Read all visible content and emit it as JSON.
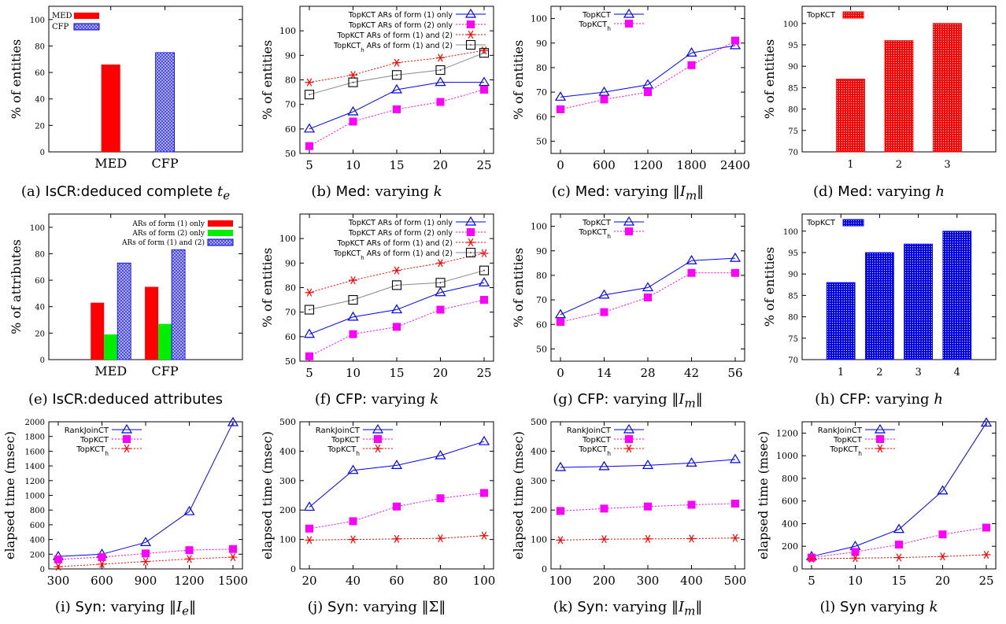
{
  "colors": {
    "red": "#ff0000",
    "magenta": "#ff00ff",
    "blue": "#0000ff",
    "green": "#00ee00",
    "black": "#000000",
    "gray": "#888888",
    "lightblue": "#8080ff"
  },
  "captions": [
    {
      "id": "a",
      "label": "(a)",
      "text": "IsCR:deduced complete",
      "math": "t",
      "sub": "e",
      "suffix": ""
    },
    {
      "id": "b",
      "label": "(b)",
      "text": "Med:",
      "rest": "varying",
      "math": "k",
      "sub": "",
      "suffix": ""
    },
    {
      "id": "c",
      "label": "(c)",
      "text": "Med:",
      "rest": "varying ‖",
      "math": "I",
      "sub": "m",
      "suffix": "‖"
    },
    {
      "id": "d",
      "label": "(d)",
      "text": "Med:",
      "rest": "varying",
      "math": "h",
      "sub": "",
      "suffix": ""
    },
    {
      "id": "e",
      "label": "(e)",
      "text": "IsCR:deduced attributes",
      "math": "",
      "sub": "",
      "suffix": ""
    },
    {
      "id": "f",
      "label": "(f)",
      "text": "CFP:",
      "rest": "varying",
      "math": "k",
      "sub": "",
      "suffix": ""
    },
    {
      "id": "g",
      "label": "(g)",
      "text": "CFP:",
      "rest": "varying ‖",
      "math": "I",
      "sub": "m",
      "suffix": "‖"
    },
    {
      "id": "h",
      "label": "(h)",
      "text": "CFP:",
      "rest": "varying",
      "math": "h",
      "sub": "",
      "suffix": ""
    },
    {
      "id": "i",
      "label": "(i)",
      "text": "Syn:",
      "rest": "varying ‖",
      "math": "I",
      "sub": "e",
      "suffix": "‖"
    },
    {
      "id": "j",
      "label": "(j)",
      "text": "Syn:",
      "rest": "varying ‖Σ‖",
      "math": "",
      "sub": "",
      "suffix": ""
    },
    {
      "id": "k",
      "label": "(k)",
      "text": "Syn:",
      "rest": "varying ‖",
      "math": "I",
      "sub": "m",
      "suffix": "‖"
    },
    {
      "id": "l",
      "label": "(l)",
      "text": "Syn",
      "rest": "varying",
      "math": "k",
      "sub": "",
      "suffix": ""
    }
  ],
  "chart_data": [
    {
      "id": "a",
      "type": "bar",
      "ylabel": "% of entities",
      "ylim": [
        0,
        110
      ],
      "yticks": [
        0,
        20,
        40,
        60,
        80,
        100
      ],
      "categories": [
        "MED",
        "CFP"
      ],
      "series": [
        {
          "name": "MED",
          "style": "solid-red",
          "values": [
            66,
            null
          ]
        },
        {
          "name": "CFP",
          "style": "hatch-blue",
          "values": [
            null,
            75
          ]
        }
      ],
      "legend": "top-left"
    },
    {
      "id": "b",
      "type": "line",
      "ylabel": "% of entities",
      "ylim": [
        50,
        110
      ],
      "yticks": [
        50,
        60,
        70,
        80,
        90,
        100
      ],
      "x": [
        5,
        10,
        15,
        20,
        25
      ],
      "series": [
        {
          "name": "TopKCT ARs of form (1) only",
          "marker": "triangle",
          "color": "blue",
          "dash": false,
          "values": [
            60,
            67,
            76,
            79,
            79
          ]
        },
        {
          "name": "TopKCT ARs of form (2) only",
          "marker": "square-filled",
          "color": "magenta",
          "dash": true,
          "values": [
            53,
            63,
            68,
            71,
            76
          ]
        },
        {
          "name": "TopKCT ARs of form (1) and (2)",
          "marker": "star",
          "color": "red",
          "dash": true,
          "values": [
            79,
            82,
            87,
            89,
            92
          ]
        },
        {
          "name": "TopKCT",
          "name_sub": "h",
          "name_rest": " ARs of form (1) and (2)",
          "marker": "square-open",
          "color": "black",
          "dash": false,
          "line": "gray",
          "values": [
            74,
            79,
            82,
            84,
            91
          ]
        }
      ],
      "legend": "top"
    },
    {
      "id": "c",
      "type": "line",
      "ylabel": "% of entities",
      "ylim": [
        45,
        105
      ],
      "yticks": [
        50,
        60,
        70,
        80,
        90,
        100
      ],
      "x": [
        0,
        600,
        1200,
        1800,
        2400
      ],
      "series": [
        {
          "name": "TopKCT",
          "marker": "triangle",
          "color": "blue",
          "dash": false,
          "values": [
            68,
            70,
            73,
            86,
            89
          ]
        },
        {
          "name": "TopKCT",
          "name_sub": "h",
          "marker": "square-filled",
          "color": "magenta",
          "dash": true,
          "values": [
            63,
            67,
            70,
            81,
            91
          ]
        }
      ],
      "legend": "top-left"
    },
    {
      "id": "d",
      "type": "bar",
      "ylabel": "% of entities",
      "ylim": [
        70,
        104
      ],
      "yticks": [
        70,
        75,
        80,
        85,
        90,
        95,
        100
      ],
      "categories": [
        "1",
        "2",
        "3"
      ],
      "series": [
        {
          "name": "TopKCT",
          "style": "dot-red",
          "values": [
            87,
            96,
            100
          ]
        }
      ],
      "legend": "top-left"
    },
    {
      "id": "e",
      "type": "bar",
      "ylabel": "% of attributes",
      "ylim": [
        0,
        110
      ],
      "yticks": [
        0,
        20,
        40,
        60,
        80,
        100
      ],
      "categories": [
        "MED",
        "CFP"
      ],
      "series": [
        {
          "name": "ARs of form (1) only",
          "style": "solid-red",
          "values": [
            43,
            55
          ]
        },
        {
          "name": "ARs of form (2) only",
          "style": "solid-green",
          "values": [
            19,
            27
          ]
        },
        {
          "name": "ARs of form (1) and (2)",
          "style": "hatch-blue",
          "values": [
            73,
            83
          ]
        }
      ],
      "legend": "top-right"
    },
    {
      "id": "f",
      "type": "line",
      "ylabel": "% of entities",
      "ylim": [
        50,
        110
      ],
      "yticks": [
        50,
        60,
        70,
        80,
        90,
        100
      ],
      "x": [
        5,
        10,
        15,
        20,
        25
      ],
      "series": [
        {
          "name": "TopKCT ARs of form (1) only",
          "marker": "triangle",
          "color": "blue",
          "dash": false,
          "values": [
            61,
            68,
            71,
            78,
            82
          ]
        },
        {
          "name": "TopKCT ARs of form (2) only",
          "marker": "square-filled",
          "color": "magenta",
          "dash": true,
          "values": [
            52,
            61,
            64,
            71,
            75
          ]
        },
        {
          "name": "TopKCT ARs of form (1) and (2)",
          "marker": "star",
          "color": "red",
          "dash": true,
          "values": [
            78,
            83,
            87,
            90,
            94
          ]
        },
        {
          "name": "TopKCT",
          "name_sub": "h",
          "name_rest": " ARs of form (1) and (2)",
          "marker": "square-open",
          "color": "black",
          "dash": false,
          "line": "gray",
          "values": [
            71,
            75,
            81,
            82,
            87
          ]
        }
      ],
      "legend": "top"
    },
    {
      "id": "g",
      "type": "line",
      "ylabel": "% of entities",
      "ylim": [
        45,
        105
      ],
      "yticks": [
        50,
        60,
        70,
        80,
        90,
        100
      ],
      "x": [
        0,
        14,
        28,
        42,
        56
      ],
      "series": [
        {
          "name": "TopKCT",
          "marker": "triangle",
          "color": "blue",
          "dash": false,
          "values": [
            64,
            72,
            75,
            86,
            87
          ]
        },
        {
          "name": "TopKCT",
          "name_sub": "h",
          "marker": "square-filled",
          "color": "magenta",
          "dash": true,
          "values": [
            61,
            65,
            71,
            81,
            81
          ]
        }
      ],
      "legend": "top-left"
    },
    {
      "id": "h",
      "type": "bar",
      "ylabel": "% of entities",
      "ylim": [
        70,
        104
      ],
      "yticks": [
        70,
        75,
        80,
        85,
        90,
        95,
        100
      ],
      "categories": [
        "1",
        "2",
        "3",
        "4"
      ],
      "series": [
        {
          "name": "TopKCT",
          "style": "dot-blue",
          "values": [
            88,
            95,
            97,
            100
          ]
        }
      ],
      "legend": "top-left"
    },
    {
      "id": "i",
      "type": "line",
      "ylabel": "elapsed time (msec)",
      "ylim": [
        0,
        2000
      ],
      "yticks": [
        0,
        200,
        400,
        600,
        800,
        1000,
        1200,
        1400,
        1600,
        1800,
        2000
      ],
      "x": [
        300,
        600,
        900,
        1200,
        1500
      ],
      "series": [
        {
          "name": "RankJoinCT",
          "marker": "triangle",
          "color": "blue",
          "dash": false,
          "values": [
            170,
            200,
            360,
            780,
            1990
          ]
        },
        {
          "name": "TopKCT",
          "marker": "square-filled",
          "color": "magenta",
          "dash": true,
          "values": [
            130,
            160,
            210,
            255,
            270
          ]
        },
        {
          "name": "TopKCT",
          "name_sub": "h",
          "marker": "star",
          "color": "red",
          "dash": true,
          "values": [
            30,
            65,
            100,
            135,
            160
          ]
        }
      ],
      "legend": "top-left"
    },
    {
      "id": "j",
      "type": "line",
      "ylabel": "elapsed time (msec)",
      "ylim": [
        0,
        500
      ],
      "yticks": [
        0,
        100,
        200,
        300,
        400,
        500
      ],
      "x": [
        20,
        40,
        60,
        80,
        100
      ],
      "series": [
        {
          "name": "RankJoinCT",
          "marker": "triangle",
          "color": "blue",
          "dash": false,
          "values": [
            210,
            335,
            352,
            385,
            433
          ]
        },
        {
          "name": "TopKCT",
          "marker": "square-filled",
          "color": "magenta",
          "dash": true,
          "values": [
            137,
            162,
            212,
            240,
            258
          ]
        },
        {
          "name": "TopKCT",
          "name_sub": "h",
          "marker": "star",
          "color": "red",
          "dash": true,
          "values": [
            98,
            100,
            102,
            104,
            113
          ]
        }
      ],
      "legend": "top-left"
    },
    {
      "id": "k",
      "type": "line",
      "ylabel": "elapsed time (msec)",
      "ylim": [
        0,
        500
      ],
      "yticks": [
        0,
        100,
        200,
        300,
        400,
        500
      ],
      "x": [
        100,
        200,
        300,
        400,
        500
      ],
      "series": [
        {
          "name": "RankJoinCT",
          "marker": "triangle",
          "color": "blue",
          "dash": false,
          "values": [
            345,
            348,
            352,
            360,
            372
          ]
        },
        {
          "name": "TopKCT",
          "marker": "square-filled",
          "color": "magenta",
          "dash": true,
          "values": [
            197,
            205,
            212,
            218,
            222
          ]
        },
        {
          "name": "TopKCT",
          "name_sub": "h",
          "marker": "star",
          "color": "red",
          "dash": true,
          "values": [
            98,
            101,
            102,
            103,
            105
          ]
        }
      ],
      "legend": "top-left"
    },
    {
      "id": "l",
      "type": "line",
      "ylabel": "elapsed time (msec)",
      "ylim": [
        0,
        1300
      ],
      "yticks": [
        0,
        200,
        400,
        600,
        800,
        1000,
        1200
      ],
      "x": [
        5,
        10,
        15,
        20,
        25
      ],
      "series": [
        {
          "name": "RankJoinCT",
          "marker": "triangle",
          "color": "blue",
          "dash": false,
          "values": [
            110,
            200,
            350,
            690,
            1290
          ]
        },
        {
          "name": "TopKCT",
          "marker": "square-filled",
          "color": "magenta",
          "dash": true,
          "values": [
            100,
            150,
            215,
            305,
            365
          ]
        },
        {
          "name": "TopKCT",
          "name_sub": "h",
          "marker": "star",
          "color": "red",
          "dash": true,
          "values": [
            90,
            95,
            100,
            110,
            125
          ]
        }
      ],
      "legend": "top-left"
    }
  ]
}
